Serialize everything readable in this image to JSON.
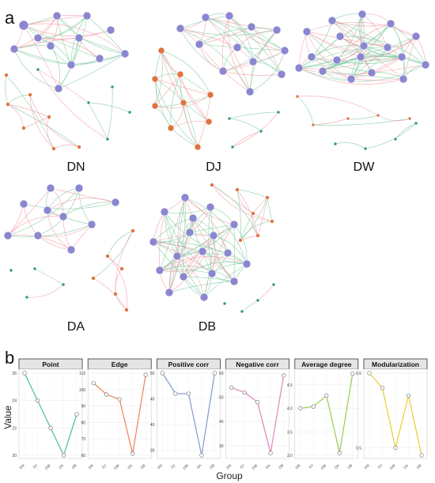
{
  "panel_labels": {
    "a": "a",
    "b": "b"
  },
  "networks": {
    "labels": [
      "DN",
      "DJ",
      "DW",
      "DA",
      "DB"
    ]
  },
  "colors": {
    "node_module_1": "#8b86d0",
    "node_module_2": "#e0733f",
    "node_module_3": "#2e9a73",
    "edge_positive": "#f29aa2",
    "edge_negative": "#7ccaa0",
    "facet_strip": "#e5e5e5"
  },
  "chart_data": {
    "type": "line",
    "ylabel": "Value",
    "xlabel": "Group",
    "categories": [
      "DN",
      "DJ",
      "DW",
      "DA",
      "DB"
    ],
    "facets": [
      {
        "name": "Point",
        "values": [
          26,
          24,
          22,
          20,
          23
        ],
        "ylim": [
          20,
          26
        ],
        "yticks": [
          20,
          22,
          24,
          26
        ],
        "color": "#5bbfaa"
      },
      {
        "name": "Edge",
        "values": [
          104,
          97,
          94,
          61,
          109
        ],
        "ylim": [
          60,
          110
        ],
        "yticks": [
          60,
          70,
          80,
          90,
          100,
          110
        ],
        "color": "#ef8a5c"
      },
      {
        "name": "Positive corr",
        "values": [
          50,
          46,
          46,
          34,
          50
        ],
        "ylim": [
          34,
          50
        ],
        "yticks": [
          35,
          40,
          45,
          50
        ],
        "color": "#8aa0d2"
      },
      {
        "name": "Negative corr",
        "values": [
          54,
          52,
          48,
          27,
          59
        ],
        "ylim": [
          26,
          60
        ],
        "yticks": [
          30,
          40,
          50,
          60
        ],
        "color": "#e38cc3"
      },
      {
        "name": "Average degree",
        "values": [
          4.0,
          4.04,
          4.27,
          3.05,
          4.74
        ],
        "ylim": [
          3.0,
          4.75
        ],
        "yticks": [
          "3.0",
          "3.5",
          "4.0",
          "4.5"
        ],
        "color": "#9ecf5a"
      },
      {
        "name": "Modularization",
        "values": [
          0.6,
          0.58,
          0.5,
          0.57,
          0.49
        ],
        "ylim": [
          0.49,
          0.6
        ],
        "yticks": [
          "0.5",
          "0.6"
        ],
        "color": "#e8d23c"
      }
    ],
    "grid": true
  }
}
